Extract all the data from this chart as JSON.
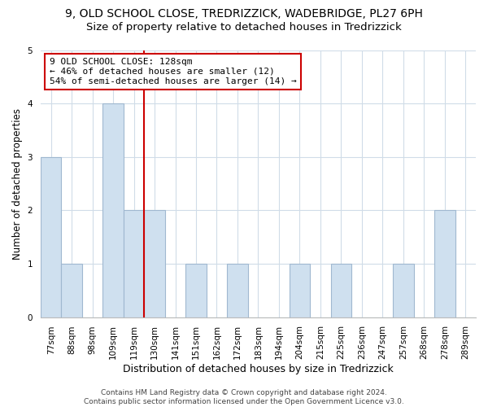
{
  "title": "9, OLD SCHOOL CLOSE, TREDRIZZICK, WADEBRIDGE, PL27 6PH",
  "subtitle": "Size of property relative to detached houses in Tredrizzick",
  "xlabel": "Distribution of detached houses by size in Tredrizzick",
  "ylabel": "Number of detached properties",
  "bar_labels": [
    "77sqm",
    "88sqm",
    "98sqm",
    "109sqm",
    "119sqm",
    "130sqm",
    "141sqm",
    "151sqm",
    "162sqm",
    "172sqm",
    "183sqm",
    "194sqm",
    "204sqm",
    "215sqm",
    "225sqm",
    "236sqm",
    "247sqm",
    "257sqm",
    "268sqm",
    "278sqm",
    "289sqm"
  ],
  "bar_values": [
    3,
    1,
    0,
    4,
    2,
    2,
    0,
    1,
    0,
    1,
    0,
    0,
    1,
    0,
    1,
    0,
    0,
    1,
    0,
    2,
    0
  ],
  "bar_color": "#cfe0ef",
  "bar_edge_color": "#a0b8d0",
  "vline_color": "#cc0000",
  "annotation_text_line1": "9 OLD SCHOOL CLOSE: 128sqm",
  "annotation_text_line2": "← 46% of detached houses are smaller (12)",
  "annotation_text_line3": "54% of semi-detached houses are larger (14) →",
  "annotation_box_facecolor": "#ffffff",
  "annotation_box_edgecolor": "#cc0000",
  "ylim": [
    0,
    5
  ],
  "yticks": [
    0,
    1,
    2,
    3,
    4,
    5
  ],
  "footer_text": "Contains HM Land Registry data © Crown copyright and database right 2024.\nContains public sector information licensed under the Open Government Licence v3.0.",
  "title_fontsize": 10,
  "subtitle_fontsize": 9.5,
  "xlabel_fontsize": 9,
  "ylabel_fontsize": 8.5,
  "tick_fontsize": 7.5,
  "annotation_fontsize": 8,
  "footer_fontsize": 6.5,
  "grid_color": "#d0dce8"
}
